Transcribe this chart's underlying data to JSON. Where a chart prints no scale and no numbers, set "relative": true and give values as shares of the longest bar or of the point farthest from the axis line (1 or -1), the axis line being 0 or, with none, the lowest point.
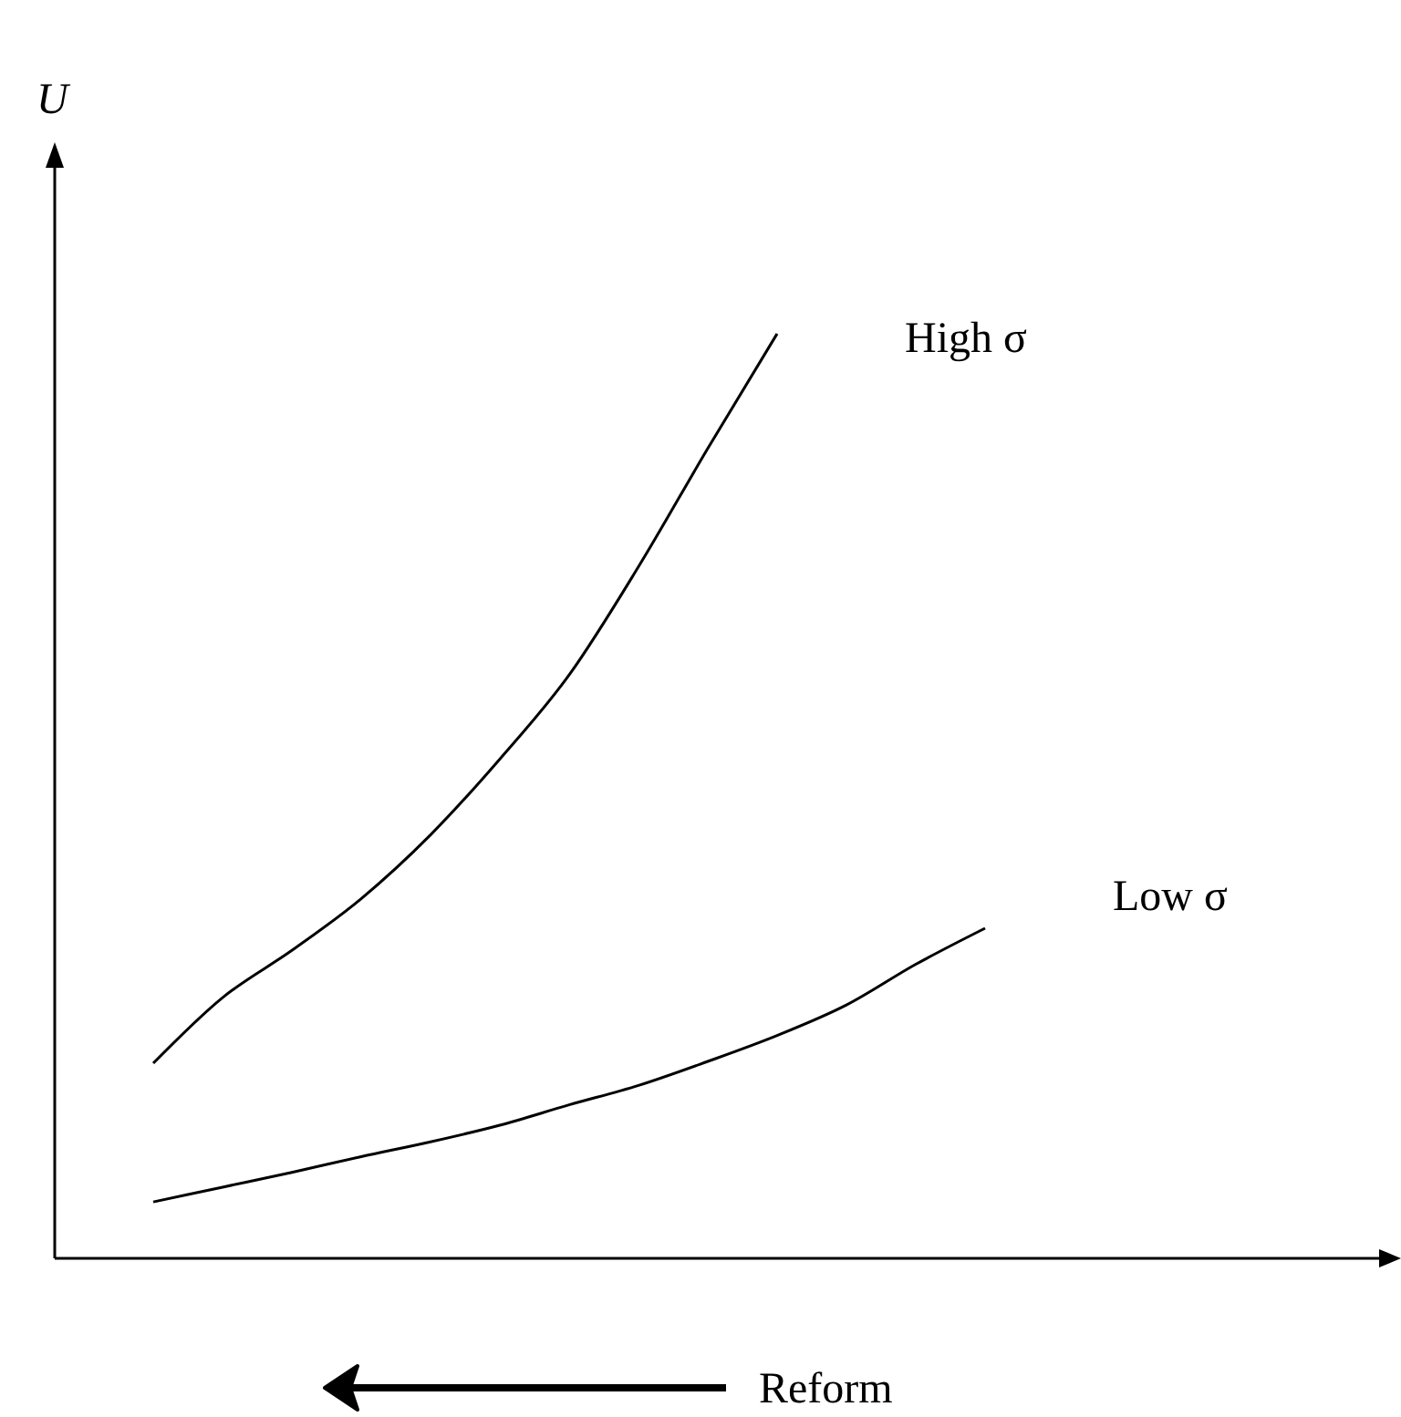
{
  "chart_data": {
    "type": "line",
    "relative": true,
    "xlabel": "Reform",
    "ylabel": "U",
    "categories": [
      null,
      null,
      null,
      null,
      null,
      null,
      null,
      null,
      null,
      null,
      null,
      null,
      null
    ],
    "series": [
      {
        "name": "High σ",
        "color": "#000000",
        "values": [
          0.211,
          0.282,
          0.333,
          0.389,
          0.458,
          0.54,
          0.631,
          0.748,
          0.876,
          1.0,
          null,
          null,
          null
        ]
      },
      {
        "name": "Low σ",
        "color": "#000000",
        "values": [
          0.061,
          0.077,
          0.093,
          0.11,
          0.126,
          0.144,
          0.166,
          0.187,
          0.213,
          0.241,
          0.274,
          0.318,
          0.357
        ]
      }
    ],
    "marker": "none",
    "line_style": "solid",
    "legend": false
  }
}
